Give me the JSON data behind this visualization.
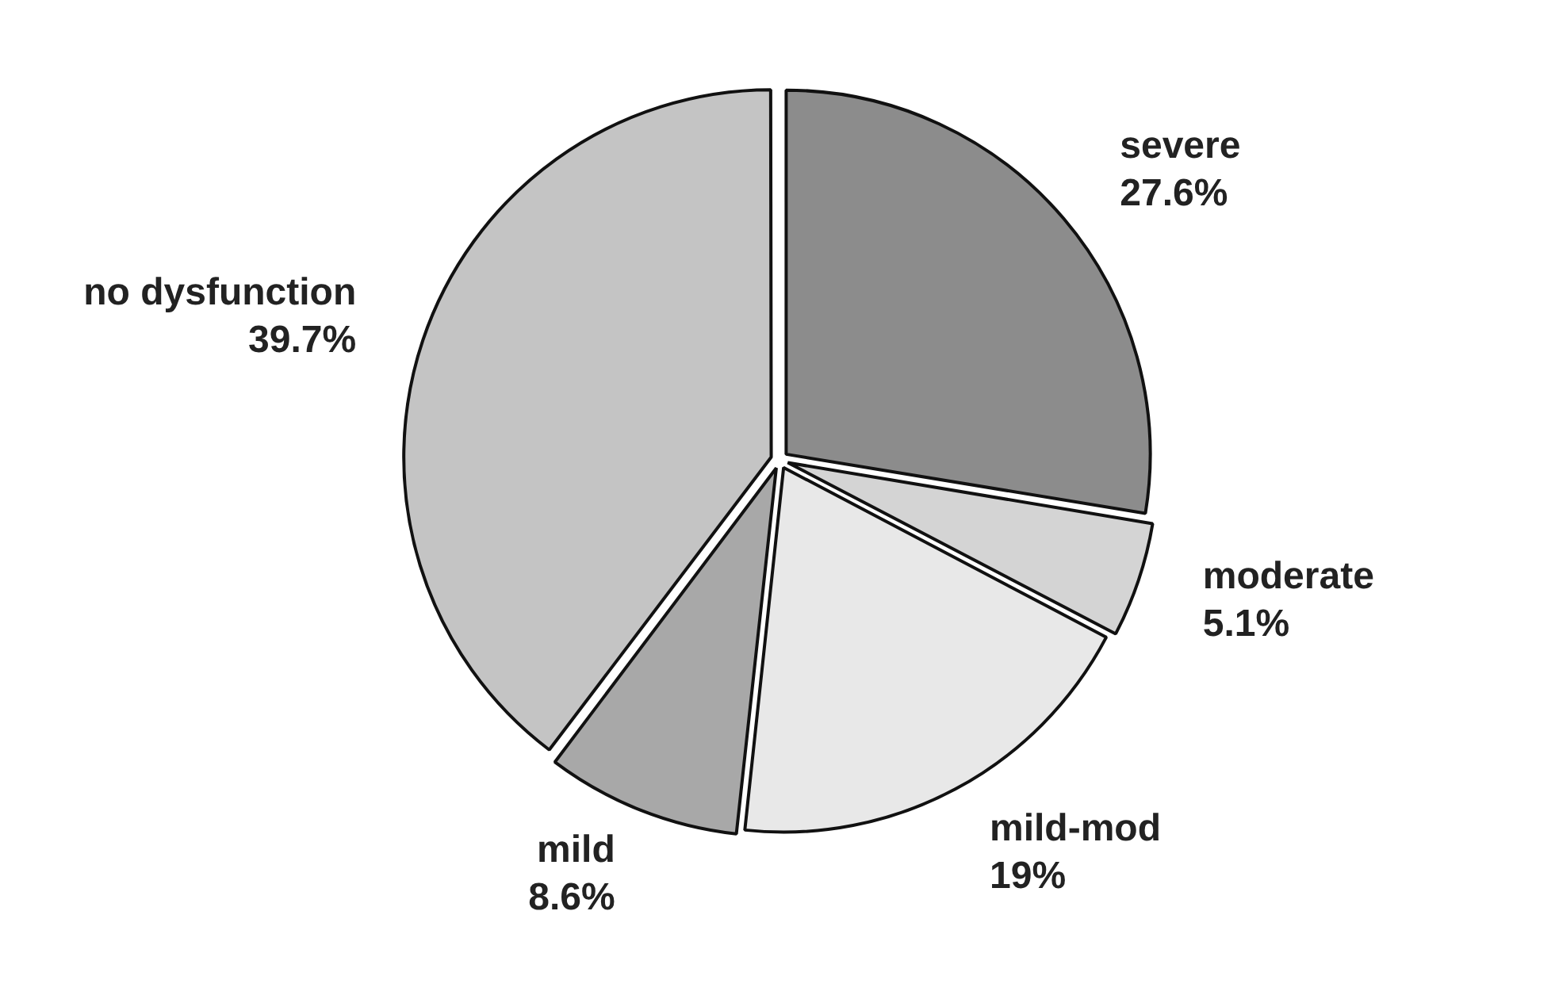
{
  "chart_data": {
    "type": "pie",
    "categories": [
      "severe",
      "moderate",
      "mild-mod",
      "mild",
      "no dysfunction"
    ],
    "values": [
      27.6,
      5.1,
      19,
      8.6,
      39.7
    ],
    "value_labels": [
      "27.6%",
      "5.1%",
      "19%",
      "8.6%",
      "39.7%"
    ],
    "colors": [
      "#8c8c8c",
      "#d4d4d4",
      "#e8e8e8",
      "#a8a8a8",
      "#c4c4c4"
    ],
    "legend": false
  }
}
